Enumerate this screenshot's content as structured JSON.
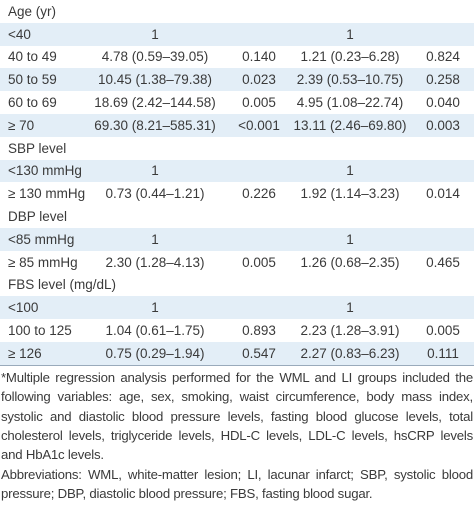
{
  "table": {
    "rows": [
      {
        "label": "Age (yr)"
      },
      {
        "label": "<40",
        "or1": "1",
        "or2": "1"
      },
      {
        "label": "40 to 49",
        "or1": "4.78 (0.59–39.05)",
        "p1": "0.140",
        "or2": "1.21 (0.23–6.28)",
        "p2": "0.824"
      },
      {
        "label": "50 to 59",
        "or1": "10.45 (1.38–79.38)",
        "p1": "0.023",
        "or2": "2.39 (0.53–10.75)",
        "p2": "0.258"
      },
      {
        "label": "60 to 69",
        "or1": "18.69 (2.42–144.58)",
        "p1": "0.005",
        "or2": "4.95 (1.08–22.74)",
        "p2": "0.040"
      },
      {
        "label": "≥ 70",
        "or1": "69.30 (8.21–585.31)",
        "p1": "<0.001",
        "or2": "13.11 (2.46–69.80)",
        "p2": "0.003"
      },
      {
        "label": "SBP level"
      },
      {
        "label": "<130 mmHg",
        "or1": "1",
        "or2": "1"
      },
      {
        "label": "≥ 130 mmHg",
        "or1": "0.73 (0.44–1.21)",
        "p1": "0.226",
        "or2": "1.92 (1.14–3.23)",
        "p2": "0.014"
      },
      {
        "label": "DBP level"
      },
      {
        "label": "<85 mmHg",
        "or1": "1",
        "or2": "1"
      },
      {
        "label": "≥ 85 mmHg",
        "or1": "2.30 (1.28–4.13)",
        "p1": "0.005",
        "or2": "1.26 (0.68–2.35)",
        "p2": "0.465"
      },
      {
        "label": "FBS level (mg/dL)"
      },
      {
        "label": "<100",
        "or1": "1",
        "or2": "1"
      },
      {
        "label": "100 to 125",
        "or1": "1.04 (0.61–1.75)",
        "p1": "0.893",
        "or2": "2.23 (1.28–3.91)",
        "p2": "0.005"
      },
      {
        "label": "≥ 126",
        "or1": "0.75 (0.29–1.94)",
        "p1": "0.547",
        "or2": "2.27 (0.83–6.23)",
        "p2": "0.111"
      }
    ]
  },
  "notes": [
    "*Multiple regression analysis performed for the WML and LI groups included the following variables: age, sex, smoking, waist circumference, body mass index, systolic and diastolic blood pressure levels, fasting blood glucose levels, total cholesterol levels, triglyceride levels, HDL-C levels, LDL-C levels, hsCRP levels and HbA1c levels.",
    "Abbreviations: WML, white-matter lesion; LI, lacunar infarct; SBP, systolic blood pressure; DBP, diastolic blood pressure; FBS, fasting blood sugar."
  ]
}
